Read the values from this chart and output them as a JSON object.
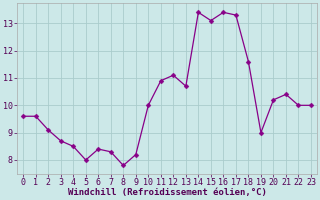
{
  "x": [
    0,
    1,
    2,
    3,
    4,
    5,
    6,
    7,
    8,
    9,
    10,
    11,
    12,
    13,
    14,
    15,
    16,
    17,
    18,
    19,
    20,
    21,
    22,
    23
  ],
  "y": [
    9.6,
    9.6,
    9.1,
    8.7,
    8.5,
    8.0,
    8.4,
    8.3,
    7.8,
    8.2,
    10.0,
    10.9,
    11.1,
    10.7,
    13.4,
    13.1,
    13.4,
    13.3,
    11.6,
    9.0,
    10.2,
    10.4,
    10.0,
    10.0
  ],
  "ylim": [
    7.5,
    13.75
  ],
  "yticks": [
    8,
    9,
    10,
    11,
    12,
    13
  ],
  "xticks": [
    0,
    1,
    2,
    3,
    4,
    5,
    6,
    7,
    8,
    9,
    10,
    11,
    12,
    13,
    14,
    15,
    16,
    17,
    18,
    19,
    20,
    21,
    22,
    23
  ],
  "xlabel": "Windchill (Refroidissement éolien,°C)",
  "line_color": "#880088",
  "marker": "D",
  "marker_size": 2.5,
  "bg_color": "#cce8e8",
  "grid_color": "#aacccc",
  "tick_fontsize": 6,
  "label_fontsize": 6.5
}
